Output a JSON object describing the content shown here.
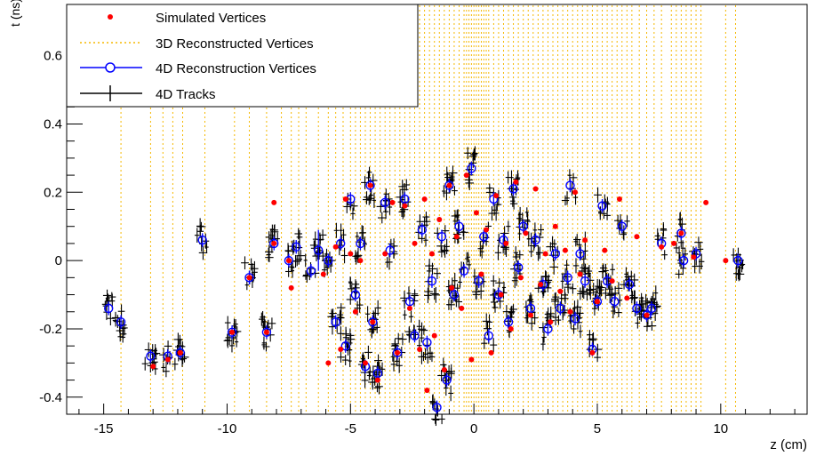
{
  "chart_data": {
    "type": "scatter",
    "title": "",
    "xlabel": "z (cm)",
    "ylabel": "t (ns)",
    "xlim": [
      -16.5,
      13.5
    ],
    "ylim": [
      -0.45,
      0.75
    ],
    "x_ticks": [
      -15,
      -10,
      -5,
      0,
      5,
      10
    ],
    "x_tick_labels": [
      "-15",
      "-10",
      "-5",
      "0",
      "5",
      "10"
    ],
    "y_ticks": [
      -0.4,
      -0.2,
      0,
      0.2,
      0.4,
      0.6
    ],
    "y_tick_labels": [
      "-0.4",
      "-0.2",
      "0",
      "0.2",
      "0.4",
      "0.6"
    ],
    "grid": false,
    "legend": {
      "placement": "top-left",
      "entries": [
        "Simulated Vertices",
        "3D Reconstructed Vertices",
        "4D Reconstruction Vertices",
        "4D Tracks"
      ]
    },
    "colors": {
      "simulated": "#ff0000",
      "reco3d": "#f5b800",
      "reco4d": "#0000ff",
      "tracks": "#000000"
    },
    "series": [
      {
        "name": "Simulated Vertices",
        "marker": "dot",
        "points": [
          [
            -13.0,
            -0.31
          ],
          [
            -12.4,
            -0.29
          ],
          [
            -11.9,
            -0.27
          ],
          [
            -9.8,
            -0.21
          ],
          [
            -9.1,
            -0.05
          ],
          [
            -8.4,
            -0.21
          ],
          [
            -8.1,
            0.17
          ],
          [
            -8.1,
            0.05
          ],
          [
            -7.5,
            0.0
          ],
          [
            -7.4,
            -0.08
          ],
          [
            -6.1,
            -0.04
          ],
          [
            -5.9,
            -0.3
          ],
          [
            -5.6,
            0.04
          ],
          [
            -5.4,
            -0.26
          ],
          [
            -5.2,
            0.18
          ],
          [
            -5.0,
            0.02
          ],
          [
            -4.8,
            -0.15
          ],
          [
            -4.6,
            0.0
          ],
          [
            -4.4,
            -0.3
          ],
          [
            -4.2,
            0.22
          ],
          [
            -4.1,
            -0.18
          ],
          [
            -3.9,
            -0.35
          ],
          [
            -3.6,
            0.02
          ],
          [
            -3.3,
            0.17
          ],
          [
            -3.1,
            -0.27
          ],
          [
            -2.8,
            0.16
          ],
          [
            -2.6,
            -0.14
          ],
          [
            -2.4,
            0.05
          ],
          [
            -2.2,
            -0.26
          ],
          [
            -2.0,
            0.18
          ],
          [
            -1.9,
            -0.38
          ],
          [
            -1.7,
            0.02
          ],
          [
            -1.6,
            -0.22
          ],
          [
            -1.4,
            0.12
          ],
          [
            -1.2,
            -0.32
          ],
          [
            -1.0,
            0.22
          ],
          [
            -0.9,
            -0.08
          ],
          [
            -0.7,
            0.07
          ],
          [
            -0.5,
            -0.14
          ],
          [
            -0.3,
            0.25
          ],
          [
            -0.1,
            -0.29
          ],
          [
            0.1,
            0.14
          ],
          [
            0.3,
            -0.04
          ],
          [
            0.5,
            0.09
          ],
          [
            0.7,
            -0.27
          ],
          [
            0.9,
            0.19
          ],
          [
            1.1,
            -0.1
          ],
          [
            1.3,
            0.05
          ],
          [
            1.5,
            -0.2
          ],
          [
            1.7,
            0.23
          ],
          [
            1.9,
            -0.05
          ],
          [
            2.1,
            0.08
          ],
          [
            2.3,
            -0.16
          ],
          [
            2.5,
            0.21
          ],
          [
            2.7,
            -0.07
          ],
          [
            2.9,
            0.02
          ],
          [
            3.1,
            -0.18
          ],
          [
            3.3,
            0.1
          ],
          [
            3.5,
            -0.09
          ],
          [
            3.7,
            0.03
          ],
          [
            3.9,
            -0.15
          ],
          [
            4.1,
            0.2
          ],
          [
            4.3,
            -0.04
          ],
          [
            4.5,
            0.06
          ],
          [
            4.8,
            -0.27
          ],
          [
            5.0,
            -0.12
          ],
          [
            5.3,
            0.03
          ],
          [
            5.6,
            -0.06
          ],
          [
            5.9,
            0.18
          ],
          [
            6.2,
            -0.11
          ],
          [
            6.6,
            0.07
          ],
          [
            7.0,
            -0.16
          ],
          [
            7.6,
            0.04
          ],
          [
            8.1,
            0.05
          ],
          [
            8.4,
            0.08
          ],
          [
            8.9,
            0.01
          ],
          [
            9.4,
            0.17
          ],
          [
            10.2,
            0.0
          ]
        ]
      },
      {
        "name": "3D Reconstructed Vertices",
        "marker": "dashed-vertical",
        "z": [
          -14.3,
          -13.1,
          -12.6,
          -12.2,
          -11.8,
          -10.9,
          -9.7,
          -9.1,
          -8.4,
          -7.8,
          -7.4,
          -7.1,
          -6.8,
          -6.3,
          -5.9,
          -5.6,
          -5.3,
          -5.0,
          -4.8,
          -4.6,
          -4.4,
          -4.2,
          -4.0,
          -3.8,
          -3.6,
          -3.4,
          -3.2,
          -3.0,
          -2.8,
          -2.6,
          -2.4,
          -2.2,
          -2.0,
          -1.8,
          -1.6,
          -1.4,
          -1.2,
          -1.0,
          -0.8,
          -0.6,
          -0.4,
          -0.3,
          -0.2,
          -0.1,
          0.0,
          0.1,
          0.2,
          0.3,
          0.4,
          0.5,
          0.6,
          0.8,
          1.0,
          1.2,
          1.4,
          1.6,
          1.8,
          2.0,
          2.2,
          2.4,
          2.6,
          2.8,
          3.0,
          3.2,
          3.4,
          3.6,
          3.8,
          4.0,
          4.2,
          4.4,
          4.6,
          4.8,
          5.0,
          5.2,
          5.4,
          5.6,
          5.8,
          6.0,
          6.2,
          6.4,
          6.7,
          7.0,
          7.3,
          7.6,
          8.0,
          8.2,
          8.4,
          8.6,
          8.8,
          9.0,
          9.2,
          10.2,
          10.6
        ]
      },
      {
        "name": "4D Reconstruction Vertices",
        "marker": "open-circle",
        "points": [
          [
            -14.8,
            -0.14,
            0.02
          ],
          [
            -14.3,
            -0.18,
            0.02
          ],
          [
            -13.1,
            -0.28,
            0.02
          ],
          [
            -12.4,
            -0.28,
            0.02
          ],
          [
            -11.9,
            -0.27,
            0.02
          ],
          [
            -11.0,
            0.06,
            0.02
          ],
          [
            -9.8,
            -0.21,
            0.02
          ],
          [
            -9.1,
            -0.05,
            0.02
          ],
          [
            -8.4,
            -0.21,
            0.02
          ],
          [
            -8.1,
            0.05,
            0.02
          ],
          [
            -7.5,
            0.0,
            0.02
          ],
          [
            -7.2,
            0.04,
            0.02
          ],
          [
            -6.6,
            -0.03,
            0.02
          ],
          [
            -6.3,
            0.03,
            0.06
          ],
          [
            -5.9,
            0.0,
            0.02
          ],
          [
            -5.6,
            -0.18,
            0.02
          ],
          [
            -5.4,
            0.05,
            0.02
          ],
          [
            -5.2,
            -0.25,
            0.02
          ],
          [
            -5.0,
            0.18,
            0.02
          ],
          [
            -4.8,
            -0.1,
            0.02
          ],
          [
            -4.6,
            0.05,
            0.02
          ],
          [
            -4.4,
            -0.31,
            0.02
          ],
          [
            -4.2,
            0.22,
            0.02
          ],
          [
            -4.1,
            -0.18,
            0.02
          ],
          [
            -3.9,
            -0.33,
            0.02
          ],
          [
            -3.6,
            0.17,
            0.02
          ],
          [
            -3.4,
            0.03,
            0.02
          ],
          [
            -3.1,
            -0.27,
            0.02
          ],
          [
            -2.8,
            0.18,
            0.02
          ],
          [
            -2.6,
            -0.12,
            0.02
          ],
          [
            -2.4,
            -0.22,
            0.02
          ],
          [
            -2.1,
            0.09,
            0.02
          ],
          [
            -1.9,
            -0.24,
            0.02
          ],
          [
            -1.7,
            -0.06,
            0.02
          ],
          [
            -1.5,
            -0.43,
            0.02
          ],
          [
            -1.3,
            0.07,
            0.02
          ],
          [
            -1.1,
            -0.35,
            0.02
          ],
          [
            -1.0,
            0.22,
            0.02
          ],
          [
            -0.8,
            -0.1,
            0.02
          ],
          [
            -0.6,
            0.1,
            0.02
          ],
          [
            -0.4,
            -0.03,
            0.02
          ],
          [
            -0.1,
            0.27,
            0.02
          ],
          [
            0.2,
            -0.06,
            0.02
          ],
          [
            0.4,
            0.07,
            0.02
          ],
          [
            0.6,
            -0.22,
            0.02
          ],
          [
            0.8,
            0.18,
            0.02
          ],
          [
            1.0,
            -0.1,
            0.02
          ],
          [
            1.2,
            0.06,
            0.02
          ],
          [
            1.4,
            -0.18,
            0.02
          ],
          [
            1.6,
            0.21,
            0.02
          ],
          [
            1.8,
            -0.02,
            0.02
          ],
          [
            2.0,
            0.1,
            0.02
          ],
          [
            2.3,
            -0.14,
            0.02
          ],
          [
            2.5,
            0.06,
            0.02
          ],
          [
            2.8,
            -0.07,
            0.02
          ],
          [
            3.0,
            -0.2,
            0.02
          ],
          [
            3.3,
            0.02,
            0.02
          ],
          [
            3.5,
            -0.14,
            0.02
          ],
          [
            3.8,
            -0.05,
            0.02
          ],
          [
            3.9,
            0.22,
            0.02
          ],
          [
            4.1,
            -0.17,
            0.02
          ],
          [
            4.3,
            0.02,
            0.02
          ],
          [
            4.5,
            -0.06,
            0.02
          ],
          [
            4.8,
            -0.26,
            0.02
          ],
          [
            5.0,
            -0.12,
            0.02
          ],
          [
            5.2,
            0.16,
            0.02
          ],
          [
            5.4,
            -0.06,
            0.02
          ],
          [
            5.7,
            -0.12,
            0.02
          ],
          [
            6.0,
            0.1,
            0.02
          ],
          [
            6.3,
            -0.07,
            0.02
          ],
          [
            6.6,
            -0.14,
            0.02
          ],
          [
            7.0,
            -0.16,
            0.02
          ],
          [
            7.2,
            -0.14,
            0.02
          ],
          [
            7.6,
            0.05,
            0.02
          ],
          [
            8.4,
            0.08,
            0.02
          ],
          [
            8.5,
            0.0,
            0.02
          ],
          [
            9.0,
            0.02,
            0.02
          ],
          [
            10.7,
            0.0,
            0.02
          ]
        ]
      },
      {
        "name": "4D Tracks",
        "marker": "error-cross",
        "points_note": "generated around reconstructed 4D vertices"
      }
    ]
  }
}
